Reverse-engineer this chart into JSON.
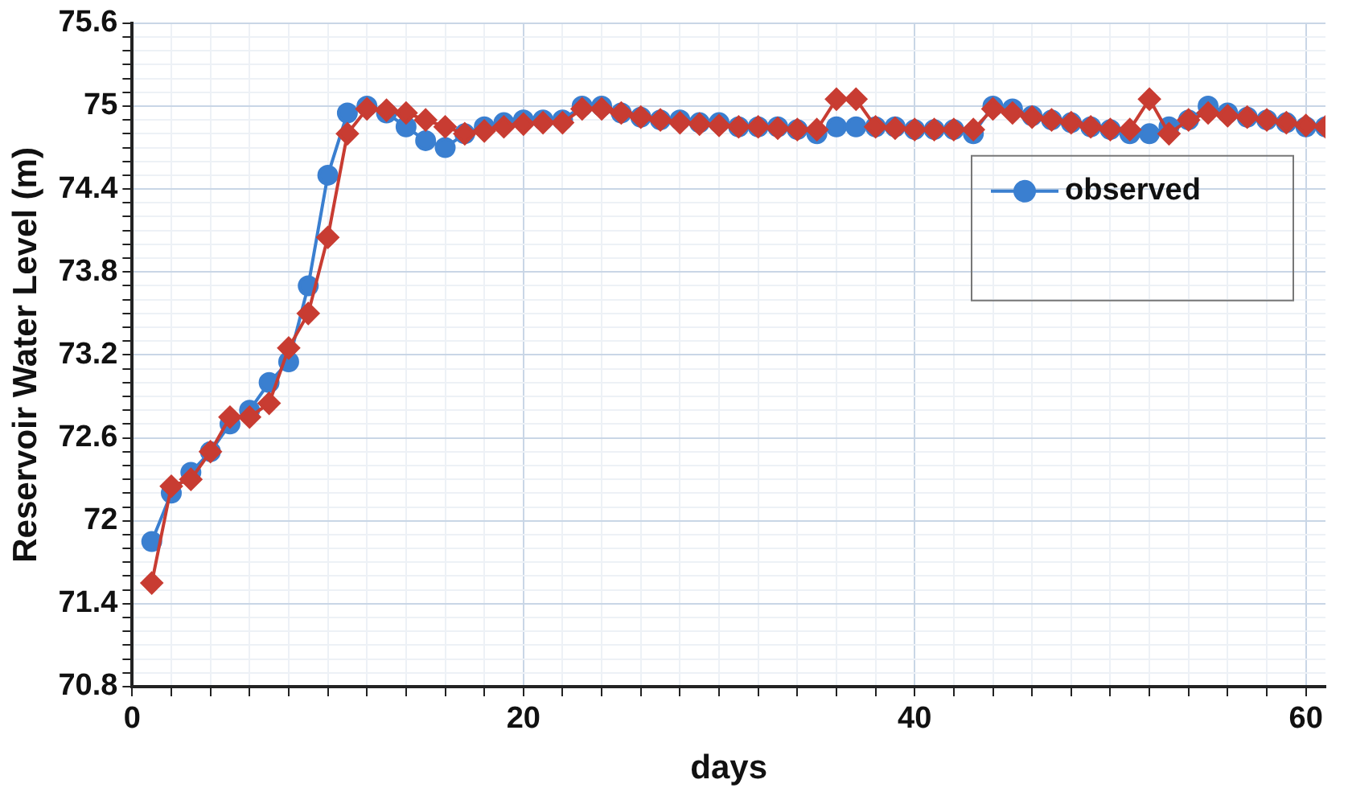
{
  "chart_data": {
    "type": "line",
    "xlabel": "days",
    "ylabel": "Reservoir Water Level (m)",
    "x": [
      1,
      2,
      3,
      4,
      5,
      6,
      7,
      8,
      9,
      10,
      11,
      12,
      13,
      14,
      15,
      16,
      17,
      18,
      19,
      20,
      21,
      22,
      23,
      24,
      25,
      26,
      27,
      28,
      29,
      30,
      31,
      32,
      33,
      34,
      35,
      36,
      37,
      38,
      39,
      40,
      41,
      42,
      43,
      44,
      45,
      46,
      47,
      48,
      49,
      50,
      51,
      52,
      53,
      54,
      55,
      56,
      57,
      58,
      59,
      60,
      61
    ],
    "series": [
      {
        "name": "observed",
        "color": "#3a7fd0",
        "marker": "circle",
        "values": [
          71.85,
          72.2,
          72.35,
          72.5,
          72.7,
          72.8,
          73.0,
          73.15,
          73.7,
          74.5,
          74.95,
          75.0,
          74.95,
          74.85,
          74.75,
          74.7,
          74.8,
          74.85,
          74.88,
          74.9,
          74.9,
          74.9,
          75.0,
          75.0,
          74.95,
          74.92,
          74.9,
          74.9,
          74.88,
          74.88,
          74.85,
          74.85,
          74.85,
          74.83,
          74.8,
          74.85,
          74.85,
          74.85,
          74.85,
          74.83,
          74.83,
          74.83,
          74.8,
          75.0,
          74.98,
          74.93,
          74.9,
          74.88,
          74.85,
          74.83,
          74.8,
          74.8,
          74.85,
          74.9,
          75.0,
          74.95,
          74.92,
          74.9,
          74.88,
          74.85,
          74.85
        ]
      },
      {
        "color": "#c83c32",
        "marker": "diamond",
        "values": [
          71.55,
          72.25,
          72.3,
          72.5,
          72.75,
          72.75,
          72.85,
          73.25,
          73.5,
          74.05,
          74.8,
          74.98,
          74.97,
          74.95,
          74.9,
          74.85,
          74.8,
          74.82,
          74.85,
          74.87,
          74.88,
          74.88,
          74.98,
          74.98,
          74.95,
          74.92,
          74.9,
          74.88,
          74.87,
          74.86,
          74.85,
          74.85,
          74.84,
          74.83,
          74.83,
          75.05,
          75.05,
          74.85,
          74.84,
          74.83,
          74.83,
          74.83,
          74.83,
          74.98,
          74.95,
          74.92,
          74.9,
          74.88,
          74.85,
          74.83,
          74.83,
          75.05,
          74.8,
          74.9,
          74.95,
          74.93,
          74.92,
          74.9,
          74.88,
          74.86,
          74.85
        ]
      }
    ],
    "xlim": [
      0,
      61
    ],
    "xticks": [
      0,
      20,
      40,
      60
    ],
    "ylim": [
      70.8,
      75.6
    ],
    "yticks": [
      70.8,
      71.4,
      72,
      72.6,
      73.2,
      73.8,
      74.4,
      75,
      75.6
    ],
    "grid": true,
    "legend": "right"
  }
}
